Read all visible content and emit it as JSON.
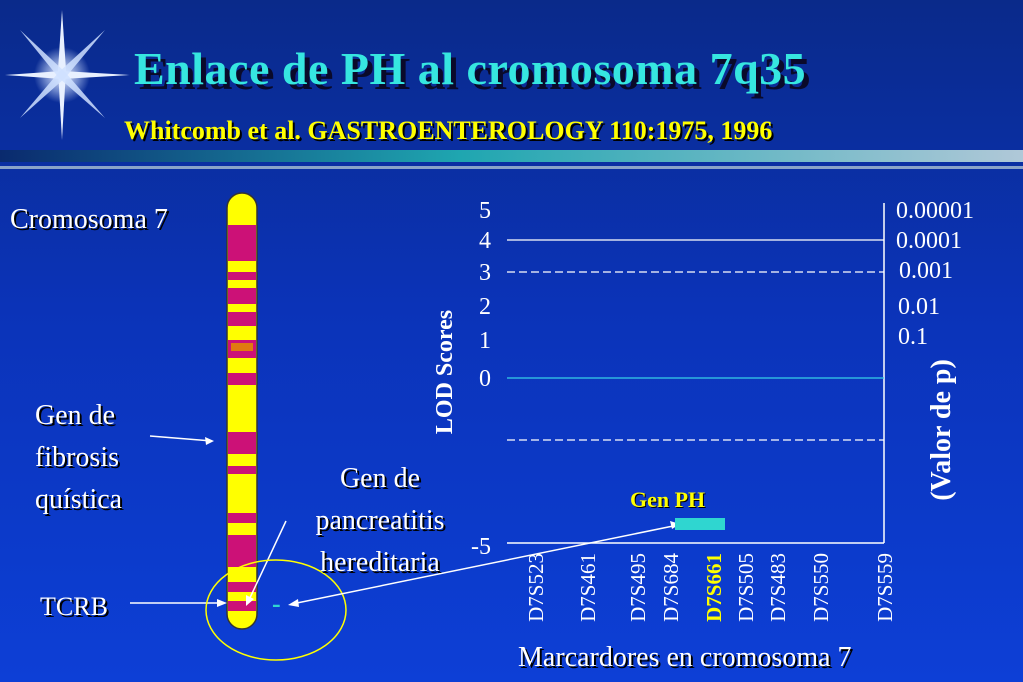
{
  "slide": {
    "title": "Enlace de PH al cromosoma 7q35",
    "subtitle": "Whitcomb et al. GASTROENTEROLOGY 110:1975, 1996"
  },
  "diagram": {
    "chromosome_label": "Cromosoma 7",
    "cf_gene_label": [
      "Gen de",
      "fibrosis",
      "quística"
    ],
    "pancreatitis_gene_label": [
      "Gen de",
      "pancreatitis",
      "hereditaria"
    ],
    "tcrb_label": "TCRB",
    "marker_dash": "-",
    "colors": {
      "chromosome_yellow": "#ffff00",
      "band_magenta": "#cc1177",
      "band_orange": "#e07a10"
    }
  },
  "chart_data": {
    "type": "line",
    "ylabel": "LOD Scores",
    "y2label": "(Valor de p)",
    "xlabel": "Marcardores en cromosoma 7",
    "ylim": [
      -5,
      5
    ],
    "y_ticks": [
      "5",
      "4",
      "3",
      "2",
      "1",
      "0",
      "-5"
    ],
    "y2_ticks": [
      "0.00001",
      "0.0001",
      "0.001",
      "0.01",
      "0.1"
    ],
    "categories": [
      "D7S523",
      "D7S461",
      "D7S495",
      "D7S684",
      "D7S661",
      "D7S505",
      "D7S483",
      "D7S550",
      "D7S559"
    ],
    "highlighted_marker": "D7S661",
    "reference_lines": [
      {
        "y": 4,
        "style": "solid",
        "color": "#ffffff"
      },
      {
        "y": 3,
        "style": "dashed",
        "color": "#ffffff"
      },
      {
        "y": 0,
        "style": "solid",
        "color": "#36d0e8"
      },
      {
        "y": -2,
        "style": "dashed",
        "color": "#ffffff"
      }
    ],
    "annotation": {
      "text": "Gen PH",
      "color": "#ffff00",
      "bar_color": "#2fd6d0"
    },
    "grid": false
  }
}
